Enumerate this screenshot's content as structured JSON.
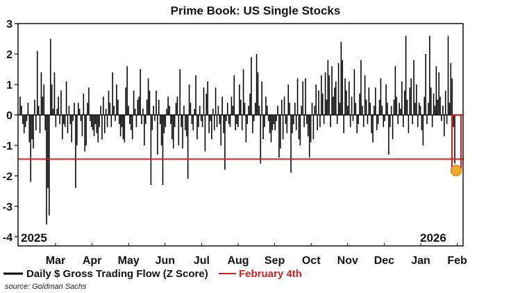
{
  "chart_data": {
    "type": "bar",
    "title": "Prime Book: US Single Stocks",
    "ylim": [
      -4.3,
      3
    ],
    "yticks": [
      3,
      2,
      1,
      0,
      -1,
      -2,
      -3,
      -4
    ],
    "month_labels": [
      "Mar",
      "Apr",
      "May",
      "Jun",
      "Jul",
      "Aug",
      "Sep",
      "Oct",
      "Nov",
      "Dec",
      "Jan",
      "Feb"
    ],
    "year_labels": [
      "2025",
      "2026"
    ],
    "series": [
      {
        "name": "Daily $ Gross Trading Flow (Z Score)",
        "color": "#000000",
        "values": [
          0.6,
          0.3,
          -0.3,
          -0.6,
          -0.4,
          -0.2,
          0.4,
          -0.9,
          -2.2,
          -0.8,
          -1.1,
          0.5,
          -0.5,
          2.1,
          0.3,
          -0.6,
          1.4,
          0.6,
          1.0,
          -0.5,
          -3.6,
          -2.4,
          -3.3,
          2.5,
          1.0,
          0.2,
          1.4,
          -0.4,
          0.2,
          0.6,
          -0.3,
          0.8,
          -0.8,
          -0.3,
          -0.4,
          1.1,
          -0.6,
          0.3,
          -0.3,
          -0.9,
          -0.2,
          0.4,
          -2.4,
          -1.0,
          0.4,
          0.2,
          -0.2,
          -0.7,
          0.7,
          -1.2,
          -1.0,
          0.4,
          0.9,
          -0.2,
          -0.4,
          -0.5,
          -0.7,
          -0.3,
          -0.6,
          -0.9,
          -0.4,
          0.3,
          -0.8,
          0.6,
          -0.6,
          0.2,
          -0.4,
          0.8,
          0.4,
          -0.4,
          1.4,
          0.3,
          -0.2,
          1.0,
          0.5,
          -0.3,
          -0.7,
          -0.4,
          -0.8,
          -0.9,
          0.9,
          1.6,
          0.3,
          -0.3,
          -0.5,
          -0.8,
          0.8,
          0.2,
          -0.4,
          0.5,
          0.6,
          1.5,
          -0.3,
          0.2,
          -1.0,
          -0.3,
          0.5,
          1.2,
          0.8,
          -2.3,
          -0.5,
          0.3,
          -0.2,
          0.8,
          -1.3,
          0.5,
          -0.3,
          -1.0,
          -2.3,
          -0.6,
          -0.4,
          0.2,
          0.6,
          0.3,
          -0.3,
          -0.8,
          -1.1,
          -0.4,
          0.4,
          0.6,
          -1.0,
          1.5,
          -0.4,
          -1.1,
          0.3,
          -0.5,
          -0.7,
          -2.1,
          1.0,
          0.4,
          -0.3,
          -0.5,
          0.2,
          1.3,
          -0.8,
          -0.4,
          0.3,
          -0.2,
          -0.4,
          0.9,
          -1.2,
          0.7,
          1.1,
          -0.6,
          -0.2,
          -0.8,
          0.2,
          -0.5,
          0.9,
          -0.4,
          0.3,
          -0.3,
          -1.0,
          0.6,
          -0.6,
          -1.8,
          -0.2,
          0.4,
          -0.3,
          -0.4,
          0.6,
          0.3,
          1.3,
          -0.5,
          -0.3,
          -0.4,
          1.0,
          0.5,
          -0.5,
          1.5,
          0.4,
          -0.9,
          -0.3,
          0.3,
          0.7,
          1.9,
          -0.6,
          -0.2,
          0.4,
          2.0,
          1.4,
          0.3,
          -1.6,
          1.1,
          -0.8,
          -0.4,
          0.6,
          0.3,
          -0.2,
          -0.6,
          -0.9,
          -0.5,
          -0.3,
          -0.5,
          -0.2,
          0.3,
          -1.4,
          -1.1,
          0.5,
          -0.8,
          0.6,
          -0.3,
          -0.6,
          1.0,
          0.4,
          -1.9,
          -0.6,
          -0.3,
          0.4,
          -0.5,
          1.2,
          -0.8,
          -1.0,
          0.3,
          1.1,
          -0.4,
          1.2,
          -0.3,
          -0.7,
          -1.4,
          -0.9,
          0.4,
          -0.8,
          0.3,
          1.0,
          -0.5,
          0.8,
          -0.4,
          1.3,
          0.7,
          -0.3,
          1.4,
          0.5,
          1.8,
          1.3,
          -0.4,
          1.6,
          0.6,
          0.9,
          1.1,
          -0.3,
          1.7,
          0.4,
          2.4,
          1.8,
          -0.6,
          1.2,
          0.8,
          0.3,
          1.1,
          -0.4,
          0.6,
          -0.2,
          1.5,
          0.4,
          -0.6,
          -0.3,
          0.7,
          1.8,
          0.3,
          -0.4,
          1.3,
          0.5,
          -0.3,
          0.9,
          0.4,
          -0.6,
          -0.9,
          0.3,
          0.9,
          -0.5,
          -0.3,
          0.5,
          1.2,
          0.3,
          -0.4,
          -0.2,
          1.0,
          0.4,
          -1.3,
          -0.4,
          0.3,
          -0.8,
          0.5,
          1.6,
          0.6,
          -0.3,
          0.4,
          0.2,
          1.1,
          -0.4,
          0.8,
          2.6,
          0.5,
          -0.6,
          0.9,
          1.2,
          -0.3,
          1.8,
          0.4,
          1.0,
          -0.4,
          0.4,
          0.3,
          -0.5,
          -1.0,
          0.6,
          2.0,
          -0.3,
          0.4,
          2.6,
          0.9,
          -0.4,
          0.7,
          0.3,
          1.6,
          0.5,
          1.4,
          0.6,
          -0.2,
          0.3,
          -0.7,
          0.8,
          -0.3,
          2.6,
          0.4,
          1.7,
          1.2,
          -0.4,
          -1.6
        ]
      }
    ],
    "highlight": {
      "name": "February 4th",
      "value": -1.45,
      "color": "#d62020",
      "marker_color": "#f0a830"
    },
    "legend": {
      "position": "bottom-left",
      "entries": [
        "Daily $ Gross Trading Flow (Z Score)",
        "February 4th"
      ]
    },
    "source": "source: Goldman Sachs"
  }
}
